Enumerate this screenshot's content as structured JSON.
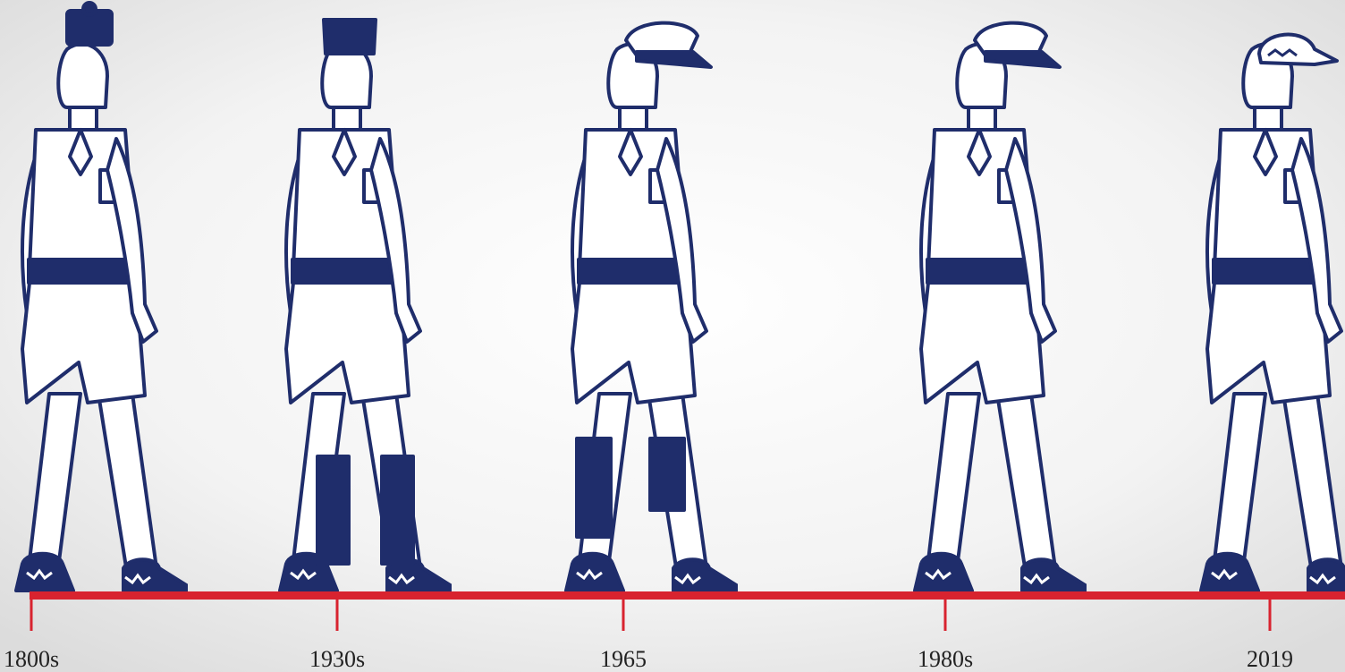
{
  "timeline": {
    "labels": [
      "1800s",
      "1930s",
      "1965",
      "1980s",
      "2019"
    ]
  }
}
